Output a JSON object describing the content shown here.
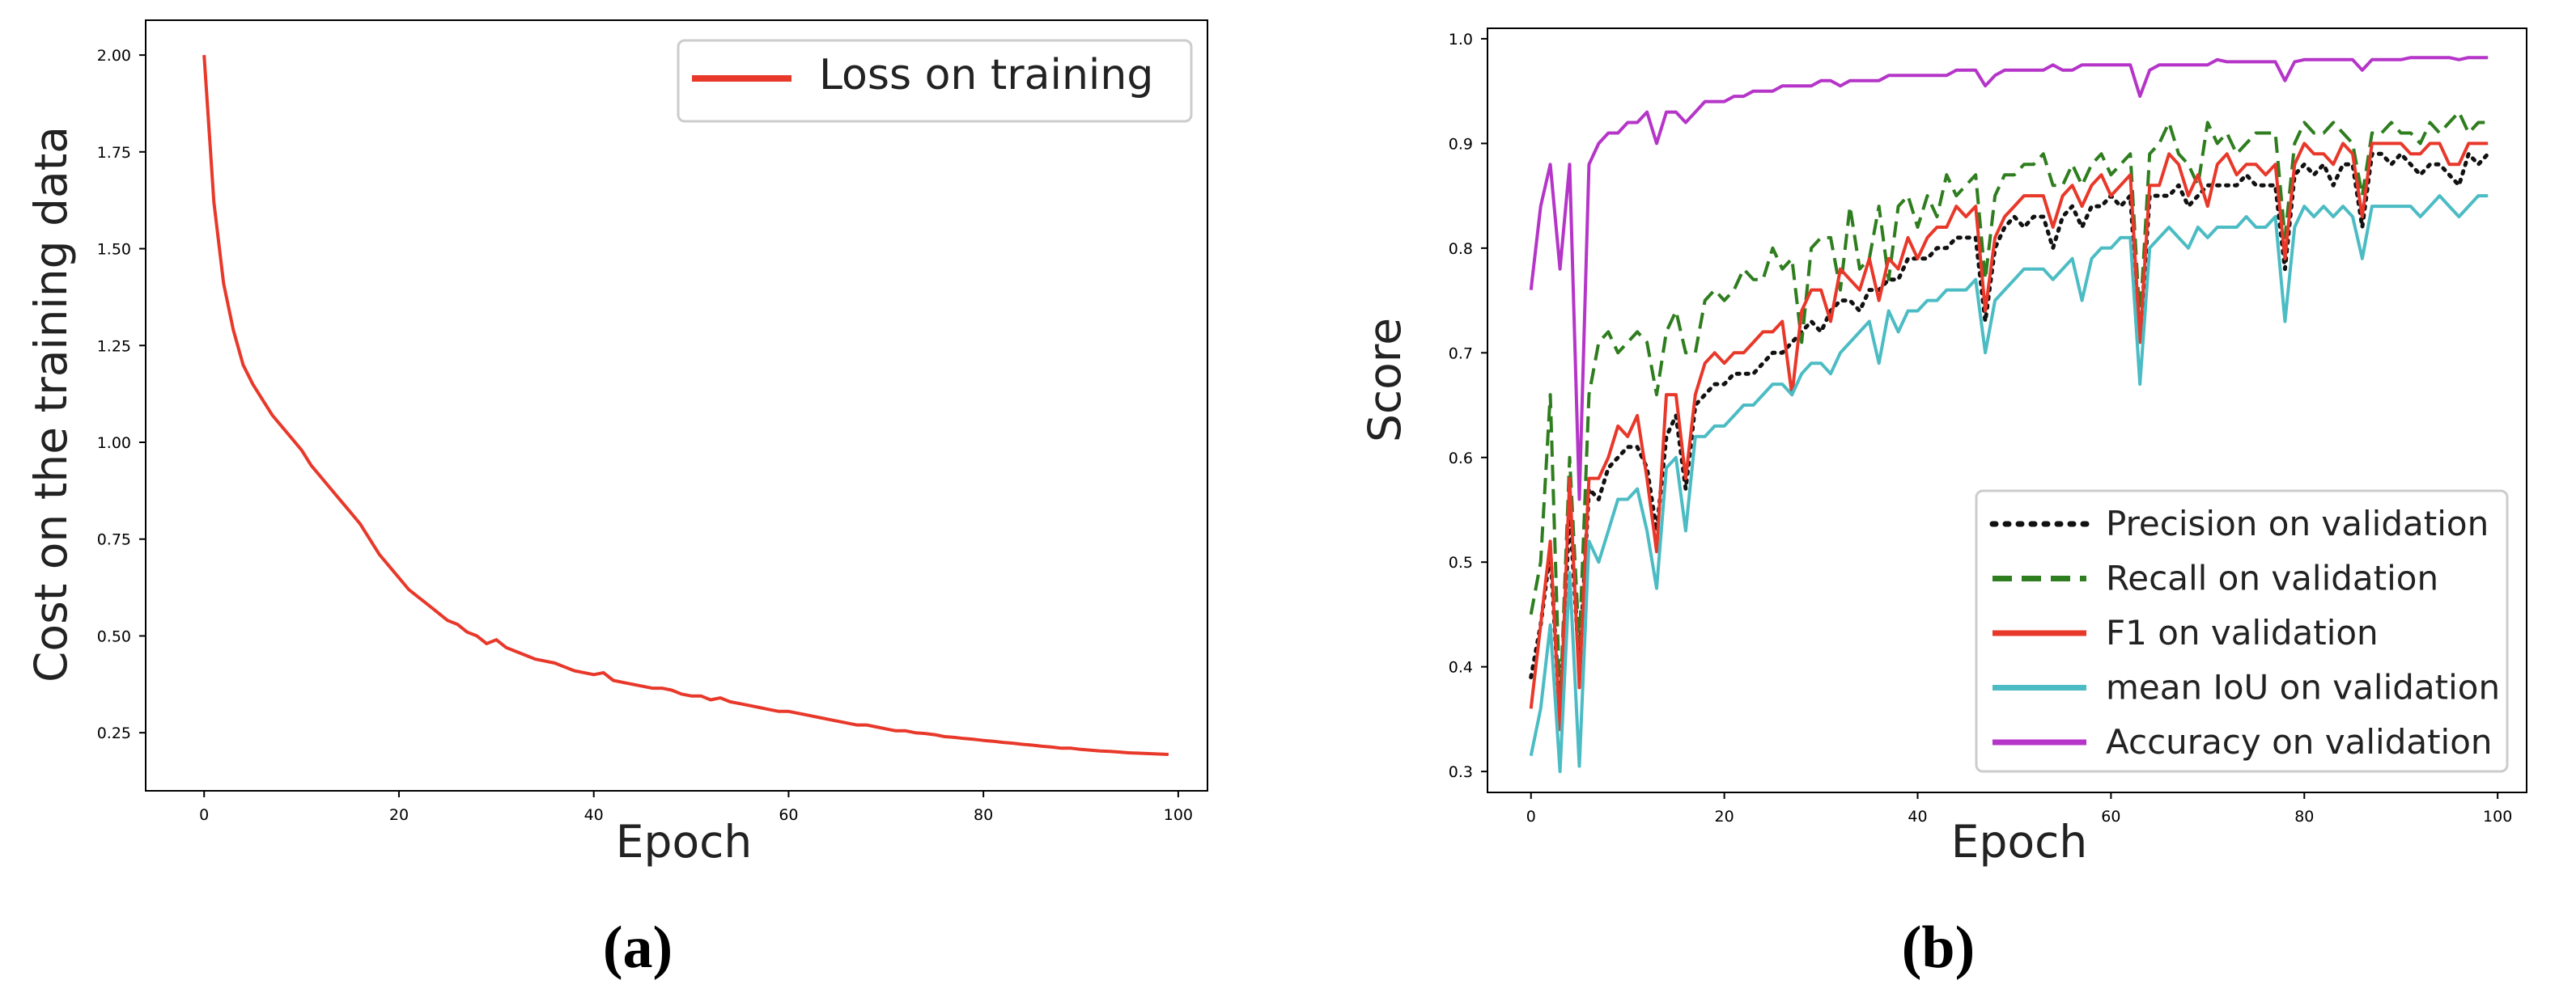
{
  "chart_data": [
    {
      "type": "line",
      "panel_label": "(a)",
      "xlabel": "Epoch",
      "ylabel": "Cost on the training data",
      "xlim": [
        -6,
        103
      ],
      "ylim": [
        0.1,
        2.09
      ],
      "xticks": [
        0,
        20,
        40,
        60,
        80,
        100
      ],
      "yticks": [
        0.25,
        0.5,
        0.75,
        1.0,
        1.25,
        1.5,
        1.75,
        2.0
      ],
      "ytick_labels": [
        "0.25",
        "0.50",
        "0.75",
        "1.00",
        "1.25",
        "1.50",
        "1.75",
        "2.00"
      ],
      "grid": false,
      "legend_position": "top-right",
      "x": [
        0,
        1,
        2,
        3,
        4,
        5,
        6,
        7,
        8,
        9,
        10,
        11,
        12,
        13,
        14,
        15,
        16,
        17,
        18,
        19,
        20,
        21,
        22,
        23,
        24,
        25,
        26,
        27,
        28,
        29,
        30,
        31,
        32,
        33,
        34,
        35,
        36,
        37,
        38,
        39,
        40,
        41,
        42,
        43,
        44,
        45,
        46,
        47,
        48,
        49,
        50,
        51,
        52,
        53,
        54,
        55,
        56,
        57,
        58,
        59,
        60,
        61,
        62,
        63,
        64,
        65,
        66,
        67,
        68,
        69,
        70,
        71,
        72,
        73,
        74,
        75,
        76,
        77,
        78,
        79,
        80,
        81,
        82,
        83,
        84,
        85,
        86,
        87,
        88,
        89,
        90,
        91,
        92,
        93,
        94,
        95,
        96,
        97,
        98,
        99
      ],
      "series": [
        {
          "name": "Loss on training",
          "color": "#e8382a",
          "style": "solid",
          "values": [
            2.0,
            1.62,
            1.41,
            1.29,
            1.2,
            1.15,
            1.11,
            1.07,
            1.04,
            1.01,
            0.98,
            0.94,
            0.91,
            0.88,
            0.85,
            0.82,
            0.79,
            0.75,
            0.71,
            0.68,
            0.65,
            0.62,
            0.6,
            0.58,
            0.56,
            0.54,
            0.53,
            0.51,
            0.5,
            0.48,
            0.49,
            0.47,
            0.46,
            0.45,
            0.44,
            0.435,
            0.43,
            0.42,
            0.41,
            0.405,
            0.4,
            0.405,
            0.385,
            0.38,
            0.375,
            0.37,
            0.365,
            0.365,
            0.36,
            0.35,
            0.345,
            0.345,
            0.335,
            0.34,
            0.33,
            0.325,
            0.32,
            0.315,
            0.31,
            0.305,
            0.305,
            0.3,
            0.295,
            0.29,
            0.285,
            0.28,
            0.275,
            0.27,
            0.27,
            0.265,
            0.26,
            0.255,
            0.255,
            0.25,
            0.248,
            0.245,
            0.24,
            0.238,
            0.235,
            0.233,
            0.23,
            0.228,
            0.225,
            0.223,
            0.22,
            0.218,
            0.215,
            0.213,
            0.21,
            0.21,
            0.207,
            0.205,
            0.203,
            0.202,
            0.2,
            0.198,
            0.197,
            0.196,
            0.195,
            0.194
          ]
        }
      ]
    },
    {
      "type": "line",
      "panel_label": "(b)",
      "xlabel": "Epoch",
      "ylabel": "Score",
      "xlim": [
        -4.5,
        103
      ],
      "ylim": [
        0.28,
        1.01
      ],
      "xticks": [
        0,
        20,
        40,
        60,
        80,
        100
      ],
      "yticks": [
        0.3,
        0.4,
        0.5,
        0.6,
        0.7,
        0.8,
        0.9,
        1.0
      ],
      "ytick_labels": [
        "0.3",
        "0.4",
        "0.5",
        "0.6",
        "0.7",
        "0.8",
        "0.9",
        "1.0"
      ],
      "grid": false,
      "legend_position": "bottom-right",
      "x": [
        0,
        1,
        2,
        3,
        4,
        5,
        6,
        7,
        8,
        9,
        10,
        11,
        12,
        13,
        14,
        15,
        16,
        17,
        18,
        19,
        20,
        21,
        22,
        23,
        24,
        25,
        26,
        27,
        28,
        29,
        30,
        31,
        32,
        33,
        34,
        35,
        36,
        37,
        38,
        39,
        40,
        41,
        42,
        43,
        44,
        45,
        46,
        47,
        48,
        49,
        50,
        51,
        52,
        53,
        54,
        55,
        56,
        57,
        58,
        59,
        60,
        61,
        62,
        63,
        64,
        65,
        66,
        67,
        68,
        69,
        70,
        71,
        72,
        73,
        74,
        75,
        76,
        77,
        78,
        79,
        80,
        81,
        82,
        83,
        84,
        85,
        86,
        87,
        88,
        89,
        90,
        91,
        92,
        93,
        94,
        95,
        96,
        97,
        98,
        99
      ],
      "series": [
        {
          "name": "Precision on validation",
          "color": "#111111",
          "style": "dotted",
          "values": [
            0.39,
            0.44,
            0.51,
            0.35,
            0.55,
            0.4,
            0.57,
            0.56,
            0.59,
            0.6,
            0.61,
            0.61,
            0.59,
            0.53,
            0.62,
            0.64,
            0.57,
            0.65,
            0.66,
            0.67,
            0.67,
            0.68,
            0.68,
            0.68,
            0.69,
            0.7,
            0.7,
            0.71,
            0.72,
            0.73,
            0.72,
            0.74,
            0.75,
            0.75,
            0.74,
            0.76,
            0.76,
            0.77,
            0.77,
            0.79,
            0.79,
            0.79,
            0.8,
            0.8,
            0.81,
            0.81,
            0.81,
            0.73,
            0.8,
            0.82,
            0.83,
            0.82,
            0.83,
            0.83,
            0.8,
            0.83,
            0.84,
            0.82,
            0.84,
            0.84,
            0.85,
            0.84,
            0.85,
            0.71,
            0.85,
            0.85,
            0.85,
            0.86,
            0.84,
            0.85,
            0.86,
            0.86,
            0.86,
            0.86,
            0.87,
            0.86,
            0.86,
            0.86,
            0.78,
            0.87,
            0.88,
            0.87,
            0.88,
            0.86,
            0.88,
            0.88,
            0.82,
            0.89,
            0.89,
            0.88,
            0.89,
            0.88,
            0.87,
            0.88,
            0.88,
            0.87,
            0.86,
            0.89,
            0.88,
            0.89
          ]
        },
        {
          "name": "Recall on validation",
          "color": "#2e7d1e",
          "style": "dashed",
          "values": [
            0.45,
            0.5,
            0.66,
            0.36,
            0.6,
            0.42,
            0.66,
            0.71,
            0.72,
            0.7,
            0.71,
            0.72,
            0.71,
            0.66,
            0.72,
            0.74,
            0.7,
            0.7,
            0.75,
            0.76,
            0.75,
            0.76,
            0.78,
            0.77,
            0.77,
            0.8,
            0.78,
            0.79,
            0.71,
            0.8,
            0.81,
            0.81,
            0.76,
            0.84,
            0.78,
            0.79,
            0.84,
            0.77,
            0.84,
            0.85,
            0.82,
            0.85,
            0.83,
            0.87,
            0.85,
            0.86,
            0.87,
            0.77,
            0.85,
            0.87,
            0.87,
            0.88,
            0.88,
            0.89,
            0.86,
            0.86,
            0.88,
            0.86,
            0.88,
            0.89,
            0.87,
            0.88,
            0.89,
            0.73,
            0.89,
            0.9,
            0.92,
            0.89,
            0.88,
            0.86,
            0.92,
            0.9,
            0.91,
            0.89,
            0.9,
            0.91,
            0.91,
            0.91,
            0.81,
            0.9,
            0.92,
            0.91,
            0.91,
            0.92,
            0.91,
            0.9,
            0.85,
            0.91,
            0.91,
            0.92,
            0.91,
            0.91,
            0.9,
            0.92,
            0.91,
            0.92,
            0.93,
            0.91,
            0.92,
            0.92
          ]
        },
        {
          "name": "F1 on validation",
          "color": "#e8382a",
          "style": "solid",
          "values": [
            0.36,
            0.44,
            0.52,
            0.34,
            0.58,
            0.38,
            0.58,
            0.58,
            0.6,
            0.63,
            0.62,
            0.64,
            0.58,
            0.51,
            0.66,
            0.66,
            0.58,
            0.66,
            0.69,
            0.7,
            0.69,
            0.7,
            0.7,
            0.71,
            0.72,
            0.72,
            0.73,
            0.66,
            0.74,
            0.76,
            0.76,
            0.73,
            0.78,
            0.77,
            0.76,
            0.79,
            0.75,
            0.79,
            0.78,
            0.81,
            0.79,
            0.81,
            0.82,
            0.82,
            0.84,
            0.83,
            0.84,
            0.74,
            0.81,
            0.83,
            0.84,
            0.85,
            0.85,
            0.85,
            0.82,
            0.85,
            0.86,
            0.84,
            0.86,
            0.87,
            0.85,
            0.86,
            0.87,
            0.71,
            0.86,
            0.86,
            0.89,
            0.88,
            0.85,
            0.87,
            0.84,
            0.88,
            0.89,
            0.87,
            0.88,
            0.88,
            0.87,
            0.88,
            0.79,
            0.88,
            0.9,
            0.89,
            0.89,
            0.88,
            0.9,
            0.89,
            0.83,
            0.9,
            0.9,
            0.9,
            0.9,
            0.89,
            0.89,
            0.9,
            0.9,
            0.88,
            0.88,
            0.9,
            0.9,
            0.9
          ]
        },
        {
          "name": "mean IoU on validation",
          "color": "#4cbcc4",
          "style": "solid",
          "values": [
            0.315,
            0.36,
            0.44,
            0.3,
            0.49,
            0.305,
            0.52,
            0.5,
            0.53,
            0.56,
            0.56,
            0.57,
            0.53,
            0.475,
            0.59,
            0.6,
            0.53,
            0.62,
            0.62,
            0.63,
            0.63,
            0.64,
            0.65,
            0.65,
            0.66,
            0.67,
            0.67,
            0.66,
            0.68,
            0.69,
            0.69,
            0.68,
            0.7,
            0.71,
            0.72,
            0.73,
            0.69,
            0.74,
            0.72,
            0.74,
            0.74,
            0.75,
            0.75,
            0.76,
            0.76,
            0.76,
            0.77,
            0.7,
            0.75,
            0.76,
            0.77,
            0.78,
            0.78,
            0.78,
            0.77,
            0.78,
            0.79,
            0.75,
            0.79,
            0.8,
            0.8,
            0.81,
            0.81,
            0.67,
            0.8,
            0.81,
            0.82,
            0.81,
            0.8,
            0.82,
            0.81,
            0.82,
            0.82,
            0.82,
            0.83,
            0.82,
            0.82,
            0.83,
            0.73,
            0.82,
            0.84,
            0.83,
            0.84,
            0.83,
            0.84,
            0.83,
            0.79,
            0.84,
            0.84,
            0.84,
            0.84,
            0.84,
            0.83,
            0.84,
            0.85,
            0.84,
            0.83,
            0.84,
            0.85,
            0.85
          ]
        },
        {
          "name": "Accuracy on validation",
          "color": "#b535c8",
          "style": "solid",
          "values": [
            0.76,
            0.84,
            0.88,
            0.78,
            0.88,
            0.56,
            0.88,
            0.9,
            0.91,
            0.91,
            0.92,
            0.92,
            0.93,
            0.9,
            0.93,
            0.93,
            0.92,
            0.93,
            0.94,
            0.94,
            0.94,
            0.945,
            0.945,
            0.95,
            0.95,
            0.95,
            0.955,
            0.955,
            0.955,
            0.955,
            0.96,
            0.96,
            0.955,
            0.96,
            0.96,
            0.96,
            0.96,
            0.965,
            0.965,
            0.965,
            0.965,
            0.965,
            0.965,
            0.965,
            0.97,
            0.97,
            0.97,
            0.955,
            0.965,
            0.97,
            0.97,
            0.97,
            0.97,
            0.97,
            0.975,
            0.97,
            0.97,
            0.975,
            0.975,
            0.975,
            0.975,
            0.975,
            0.975,
            0.945,
            0.97,
            0.975,
            0.975,
            0.975,
            0.975,
            0.975,
            0.975,
            0.98,
            0.978,
            0.978,
            0.978,
            0.978,
            0.978,
            0.978,
            0.96,
            0.978,
            0.98,
            0.98,
            0.98,
            0.98,
            0.98,
            0.98,
            0.97,
            0.98,
            0.98,
            0.98,
            0.98,
            0.982,
            0.982,
            0.982,
            0.982,
            0.982,
            0.98,
            0.982,
            0.982,
            0.982
          ]
        }
      ]
    }
  ]
}
